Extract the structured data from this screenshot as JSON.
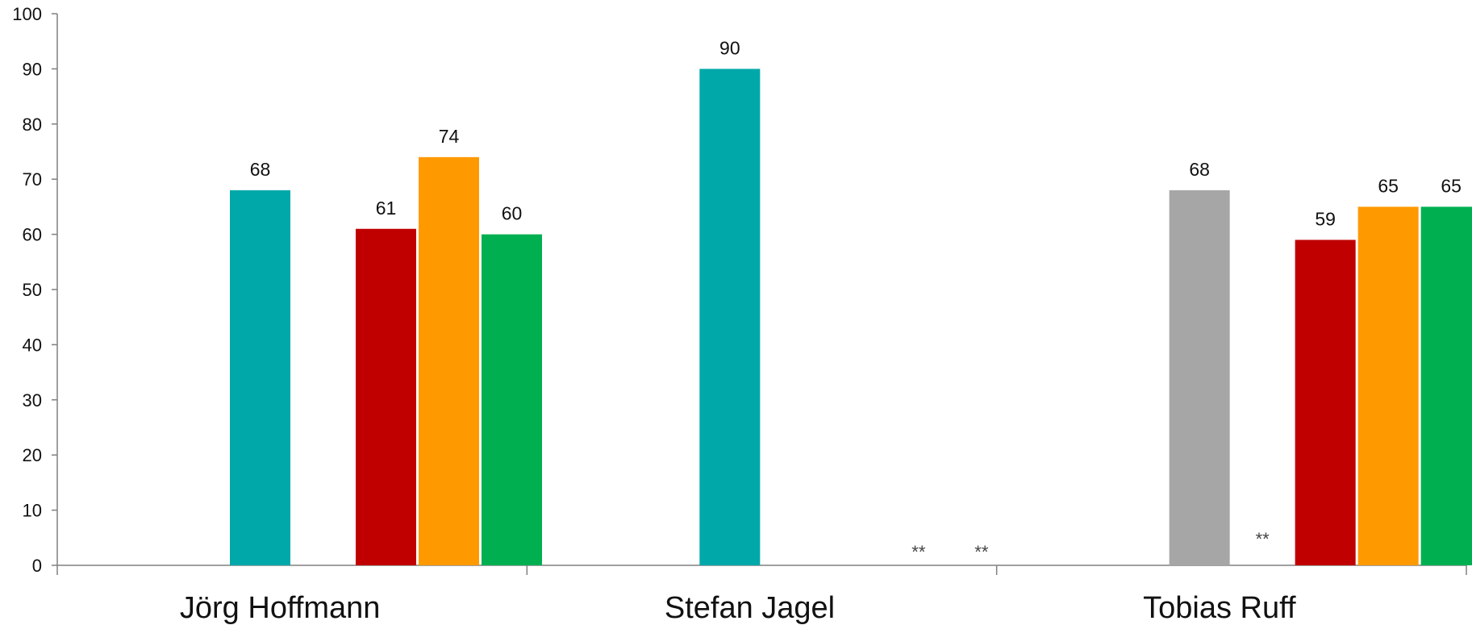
{
  "chart_data": {
    "type": "bar",
    "title": "",
    "xlabel": "",
    "ylabel": "",
    "ylim": [
      0,
      100
    ],
    "yticks": [
      0,
      10,
      20,
      30,
      40,
      50,
      60,
      70,
      80,
      90,
      100
    ],
    "grid": false,
    "legend": "none",
    "categories": [
      "Jörg Hoffmann",
      "Stefan Jagel",
      "Tobias Ruff"
    ],
    "slots_per_category": 5,
    "bars": [
      {
        "category": 0,
        "slot": 0,
        "value": 68,
        "label": "68",
        "color": "#00A8AA"
      },
      {
        "category": 0,
        "slot": 2,
        "value": 61,
        "label": "61",
        "color": "#C00000"
      },
      {
        "category": 0,
        "slot": 3,
        "value": 74,
        "label": "74",
        "color": "#FF9900"
      },
      {
        "category": 0,
        "slot": 4,
        "value": 60,
        "label": "60",
        "color": "#00B050"
      },
      {
        "category": 1,
        "slot": 0,
        "value": 90,
        "label": "90",
        "color": "#00A8AA"
      },
      {
        "category": 2,
        "slot": 0,
        "value": 68,
        "label": "68",
        "color": "#A6A6A6"
      },
      {
        "category": 2,
        "slot": 2,
        "value": 59,
        "label": "59",
        "color": "#C00000"
      },
      {
        "category": 2,
        "slot": 3,
        "value": 65,
        "label": "65",
        "color": "#FF9900"
      },
      {
        "category": 2,
        "slot": 4,
        "value": 65,
        "label": "65",
        "color": "#00B050"
      }
    ],
    "notes": [
      {
        "category": 1,
        "slot": 3,
        "text": "**"
      },
      {
        "category": 1,
        "slot": 4,
        "text": "**"
      },
      {
        "category": 2,
        "slot": 1,
        "text": "**"
      }
    ]
  }
}
